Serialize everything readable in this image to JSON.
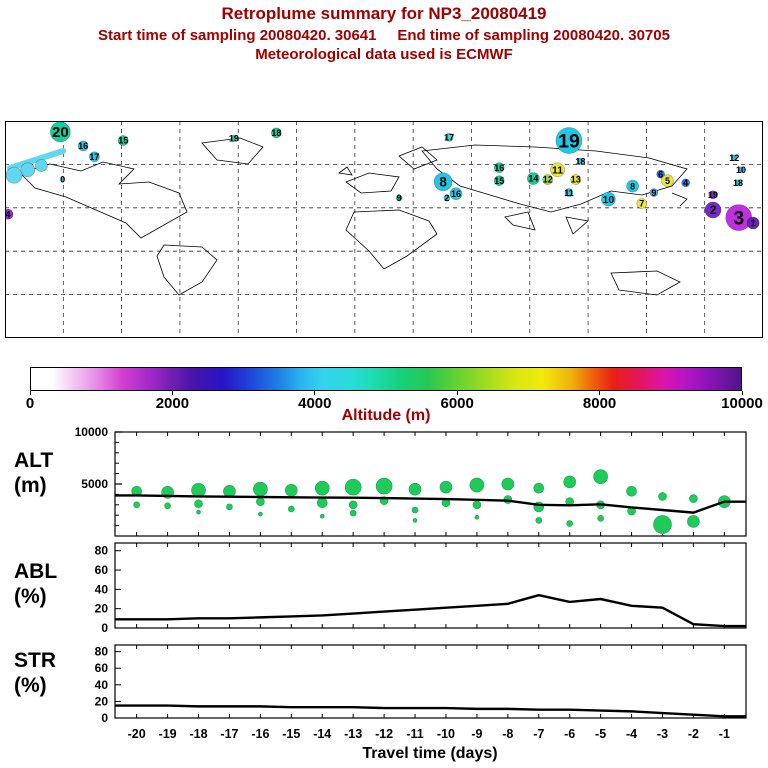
{
  "header": {
    "title": "Retroplume summary for NP3_20080419",
    "line2": "Start time of sampling 20080420. 30641     End time of sampling 20080420. 30705",
    "line3": "Meteorological data used is ECMWF",
    "title_color": "#a00000"
  },
  "colorbar": {
    "label": "Altitude (m)",
    "min": 0,
    "max": 10000,
    "ticks": [
      0,
      2000,
      4000,
      6000,
      8000,
      10000
    ],
    "stops": [
      [
        0,
        "#ffffff"
      ],
      [
        3,
        "#ffffff"
      ],
      [
        6,
        "#f2c8f2"
      ],
      [
        9,
        "#e691e6"
      ],
      [
        13,
        "#d23cd2"
      ],
      [
        17,
        "#a028c8"
      ],
      [
        20,
        "#6e1eb4"
      ],
      [
        23,
        "#4614aa"
      ],
      [
        27,
        "#2814c8"
      ],
      [
        31,
        "#1e46dc"
      ],
      [
        35,
        "#1e82e6"
      ],
      [
        38,
        "#28b4f0"
      ],
      [
        41,
        "#32d2f0"
      ],
      [
        45,
        "#28dcdc"
      ],
      [
        48,
        "#1edcb4"
      ],
      [
        52,
        "#14d27d"
      ],
      [
        56,
        "#28c850"
      ],
      [
        60,
        "#64d232"
      ],
      [
        64,
        "#a0dc1e"
      ],
      [
        68,
        "#d7e614"
      ],
      [
        72,
        "#f0eb0a"
      ],
      [
        76,
        "#f0b40a"
      ],
      [
        79,
        "#f0640a"
      ],
      [
        82,
        "#eb1e14"
      ],
      [
        86,
        "#e61464"
      ],
      [
        89,
        "#dc14aa"
      ],
      [
        92,
        "#b914c8"
      ],
      [
        96,
        "#8214b4"
      ],
      [
        100,
        "#50148c"
      ]
    ]
  },
  "map": {
    "bubbles": [
      {
        "label": "20",
        "x": 7.3,
        "y": 5,
        "r": 10,
        "color": "#10d0a0"
      },
      {
        "label": "16",
        "x": 10.3,
        "y": 11.5,
        "r": 5,
        "color": "#20c8e8"
      },
      {
        "label": "17",
        "x": 11.8,
        "y": 16.5,
        "r": 5,
        "color": "#20c8e8"
      },
      {
        "label": "15",
        "x": 15.6,
        "y": 9,
        "r": 5,
        "color": "#10d0a0"
      },
      {
        "label": "",
        "x": 1.2,
        "y": 25,
        "r": 8,
        "color": "#60d8f0"
      },
      {
        "label": "",
        "x": 3,
        "y": 22.5,
        "r": 7,
        "color": "#60d8f0"
      },
      {
        "label": "",
        "x": 4.8,
        "y": 20.5,
        "r": 6,
        "color": "#60d8f0"
      },
      {
        "label": "0",
        "x": 7.6,
        "y": 27,
        "r": 2,
        "color": "#20c8e8"
      },
      {
        "label": "4",
        "x": 0.4,
        "y": 43,
        "r": 5,
        "color": "#8828d8"
      },
      {
        "label": "19",
        "x": 30.2,
        "y": 8,
        "r": 3,
        "color": "#10d0a0"
      },
      {
        "label": "18",
        "x": 35.8,
        "y": 5.5,
        "r": 5,
        "color": "#10d0a0"
      },
      {
        "label": "9",
        "x": 52,
        "y": 35.5,
        "r": 3,
        "color": "#10d0a0"
      },
      {
        "label": "17",
        "x": 58.6,
        "y": 7.5,
        "r": 4,
        "color": "#40d8d0"
      },
      {
        "label": "8",
        "x": 57.8,
        "y": 28,
        "r": 9,
        "color": "#20c8e8"
      },
      {
        "label": "16",
        "x": 59.5,
        "y": 33.5,
        "r": 6,
        "color": "#20c8e8"
      },
      {
        "label": "2",
        "x": 58.3,
        "y": 35.5,
        "r": 3,
        "color": "#20c8e8"
      },
      {
        "label": "19",
        "x": 74.4,
        "y": 9,
        "r": 13,
        "color": "#20c8e8"
      },
      {
        "label": "11",
        "x": 72.9,
        "y": 22.5,
        "r": 7,
        "color": "#e8e838"
      },
      {
        "label": "16",
        "x": 65.2,
        "y": 21.5,
        "r": 5,
        "color": "#10d0a0"
      },
      {
        "label": "15",
        "x": 65.2,
        "y": 27.5,
        "r": 5,
        "color": "#10d0a0"
      },
      {
        "label": "14",
        "x": 69.7,
        "y": 26.5,
        "r": 6,
        "color": "#10d0a0"
      },
      {
        "label": "12",
        "x": 71.6,
        "y": 27,
        "r": 5,
        "color": "#a0e040"
      },
      {
        "label": "13",
        "x": 75.3,
        "y": 27,
        "r": 5,
        "color": "#e8e838"
      },
      {
        "label": "18",
        "x": 75.9,
        "y": 18.5,
        "r": 3,
        "color": "#20c8e8"
      },
      {
        "label": "11",
        "x": 74.4,
        "y": 33,
        "r": 4,
        "color": "#20c8e8"
      },
      {
        "label": "10",
        "x": 79.6,
        "y": 36,
        "r": 7,
        "color": "#20c8e8"
      },
      {
        "label": "8",
        "x": 82.8,
        "y": 30,
        "r": 6,
        "color": "#20c8e8"
      },
      {
        "label": "9",
        "x": 85.6,
        "y": 33,
        "r": 4,
        "color": "#50a8f0"
      },
      {
        "label": "7",
        "x": 84.0,
        "y": 38,
        "r": 5,
        "color": "#e8e838"
      },
      {
        "label": "6",
        "x": 86.5,
        "y": 24.5,
        "r": 4,
        "color": "#4070e8"
      },
      {
        "label": "5",
        "x": 87.4,
        "y": 27.5,
        "r": 6,
        "color": "#e8e838"
      },
      {
        "label": "4",
        "x": 89.8,
        "y": 28.5,
        "r": 4,
        "color": "#4070e8"
      },
      {
        "label": "12",
        "x": 96.2,
        "y": 17,
        "r": 3,
        "color": "#20c8e8"
      },
      {
        "label": "10",
        "x": 97.1,
        "y": 22.5,
        "r": 3,
        "color": "#50a8f0"
      },
      {
        "label": "18",
        "x": 96.7,
        "y": 28.5,
        "r": 3,
        "color": "#20c8e8"
      },
      {
        "label": "19",
        "x": 93.4,
        "y": 34,
        "r": 4,
        "color": "#8828d8"
      },
      {
        "label": "2",
        "x": 93.4,
        "y": 41,
        "r": 8,
        "color": "#7828c8"
      },
      {
        "label": "3",
        "x": 96.8,
        "y": 44.5,
        "r": 13,
        "color": "#c030e0"
      },
      {
        "label": "1",
        "x": 98.7,
        "y": 47,
        "r": 6,
        "color": "#6820b8"
      }
    ]
  },
  "chart_data": [
    {
      "type": "scatter",
      "name": "ALT",
      "ylabel_lines": [
        "ALT",
        "(m)"
      ],
      "ylim": [
        0,
        10000
      ],
      "ytick_labels": [
        {
          "value": 10000,
          "label": "10000"
        },
        {
          "value": 5000,
          "label": "5000"
        }
      ],
      "x": [
        -20,
        -19,
        -18,
        -17,
        -16,
        -15,
        -14,
        -13,
        -12,
        -11,
        -10,
        -9,
        -8,
        -7,
        -6,
        -5,
        -4,
        -3,
        -2,
        -1
      ],
      "line": [
        3900,
        3850,
        3800,
        3780,
        3750,
        3720,
        3700,
        3680,
        3650,
        3600,
        3550,
        3480,
        3400,
        3000,
        2950,
        3050,
        2750,
        2500,
        2250,
        3300
      ],
      "bubbles": [
        [
          -20,
          4300,
          5
        ],
        [
          -20,
          3000,
          3
        ],
        [
          -19,
          4200,
          6
        ],
        [
          -19,
          2900,
          3
        ],
        [
          -18,
          4400,
          7
        ],
        [
          -18,
          3100,
          4
        ],
        [
          -18,
          2300,
          2
        ],
        [
          -17,
          4300,
          6
        ],
        [
          -17,
          2800,
          3
        ],
        [
          -16,
          4500,
          7
        ],
        [
          -16,
          3300,
          4
        ],
        [
          -16,
          2100,
          2
        ],
        [
          -15,
          4400,
          6
        ],
        [
          -15,
          2600,
          3
        ],
        [
          -14,
          4600,
          7
        ],
        [
          -14,
          3200,
          5
        ],
        [
          -14,
          1900,
          2
        ],
        [
          -13,
          4700,
          8
        ],
        [
          -13,
          3000,
          4
        ],
        [
          -13,
          2200,
          3
        ],
        [
          -12,
          4800,
          8
        ],
        [
          -12,
          3400,
          4
        ],
        [
          -11,
          4500,
          6
        ],
        [
          -11,
          2500,
          3
        ],
        [
          -11,
          1500,
          2
        ],
        [
          -10,
          4700,
          6
        ],
        [
          -10,
          3200,
          4
        ],
        [
          -9,
          4900,
          7
        ],
        [
          -9,
          3000,
          4
        ],
        [
          -9,
          1800,
          2
        ],
        [
          -8,
          5000,
          6
        ],
        [
          -8,
          3500,
          4
        ],
        [
          -7,
          4600,
          5
        ],
        [
          -7,
          2800,
          5
        ],
        [
          -7,
          1500,
          3
        ],
        [
          -6,
          5200,
          6
        ],
        [
          -6,
          3300,
          4
        ],
        [
          -6,
          1200,
          3
        ],
        [
          -5,
          5700,
          7
        ],
        [
          -5,
          3000,
          4
        ],
        [
          -5,
          1700,
          3
        ],
        [
          -4,
          4300,
          5
        ],
        [
          -4,
          2400,
          4
        ],
        [
          -3,
          3800,
          4
        ],
        [
          -3,
          1100,
          9
        ],
        [
          -2,
          3600,
          4
        ],
        [
          -2,
          1400,
          6
        ],
        [
          -1,
          3300,
          6
        ]
      ],
      "bubble_color": "#1ecb5a"
    },
    {
      "type": "line",
      "name": "ABL",
      "ylabel_lines": [
        "ABL",
        "(%)"
      ],
      "ylim": [
        0,
        88
      ],
      "yticks": [
        0,
        20,
        40,
        60,
        80
      ],
      "x": [
        -20,
        -19,
        -18,
        -17,
        -16,
        -15,
        -14,
        -13,
        -12,
        -11,
        -10,
        -9,
        -8,
        -7,
        -6,
        -5,
        -4,
        -3,
        -2,
        -1
      ],
      "line": [
        9,
        9,
        10,
        10,
        11,
        12,
        13,
        15,
        17,
        19,
        21,
        23,
        25,
        34,
        27,
        30,
        23,
        21,
        4,
        2
      ]
    },
    {
      "type": "line",
      "name": "STR",
      "ylabel_lines": [
        "STR",
        "(%)"
      ],
      "ylim": [
        0,
        88
      ],
      "yticks": [
        0,
        20,
        40,
        60,
        80
      ],
      "x": [
        -20,
        -19,
        -18,
        -17,
        -16,
        -15,
        -14,
        -13,
        -12,
        -11,
        -10,
        -9,
        -8,
        -7,
        -6,
        -5,
        -4,
        -3,
        -2,
        -1
      ],
      "line": [
        15,
        15,
        14,
        14,
        14,
        13,
        13,
        13,
        12,
        12,
        12,
        11,
        11,
        10,
        10,
        9,
        8,
        6,
        4,
        2
      ]
    }
  ],
  "xaxis": {
    "label": "Travel time (days)",
    "ticks": [
      -20,
      -19,
      -18,
      -17,
      -16,
      -15,
      -14,
      -13,
      -12,
      -11,
      -10,
      -9,
      -8,
      -7,
      -6,
      -5,
      -4,
      -3,
      -2,
      -1
    ]
  }
}
